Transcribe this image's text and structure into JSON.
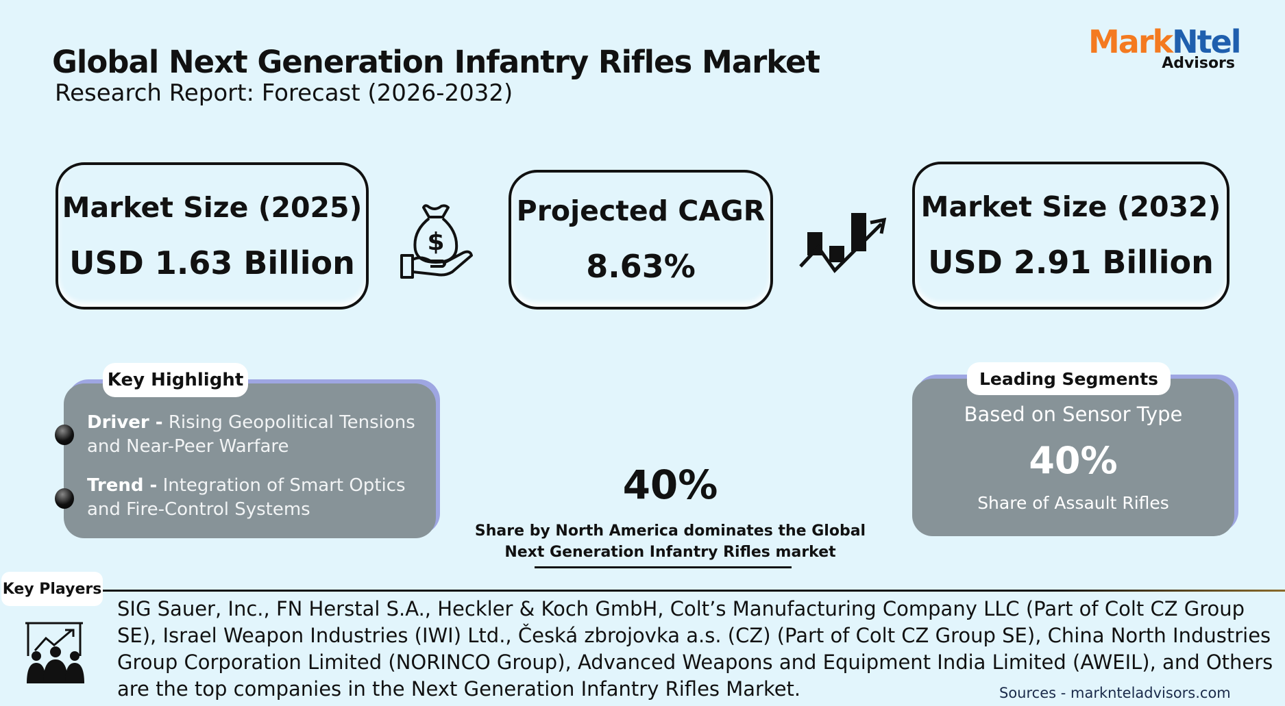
{
  "header": {
    "title": "Global Next Generation Infantry Rifles Market",
    "subtitle": "Research Report: Forecast (2026-2032)"
  },
  "logo": {
    "part1": "Mark",
    "part2": "Ntel",
    "part3": "Advisors",
    "colors": {
      "mark": "#f47a20",
      "ntel": "#1f5fae"
    }
  },
  "stats": [
    {
      "label": "Market Size (2025)",
      "value": "USD 1.63 Billion",
      "icon": "money-bag-hand-icon"
    },
    {
      "label": "Projected CAGR",
      "value": "8.63%",
      "icon": "growth-chart-arrow-icon"
    },
    {
      "label": "Market Size (2032)",
      "value": "USD 2.91 Billion"
    }
  ],
  "key_highlight": {
    "title": "Key Highlight",
    "items": [
      {
        "label": "Driver -",
        "text": "Rising Geopolitical Tensions and Near-Peer Warfare"
      },
      {
        "label": "Trend -",
        "text": "Integration of Smart Optics and Fire-Control Systems"
      }
    ]
  },
  "region": {
    "value": "40%",
    "line1": "Share by North America dominates the Global",
    "line2": "Next Generation Infantry Rifles market"
  },
  "segments": {
    "title": "Leading Segments",
    "basis": "Based on Sensor Type",
    "value": "40%",
    "caption": "Share of Assault Rifles"
  },
  "key_players": {
    "title": "Key Players",
    "text": "SIG Sauer, Inc., FN Herstal S.A., Heckler & Koch GmbH, Colt’s Manufacturing Company LLC (Part of Colt CZ Group SE), Israel Weapon Industries (IWI) Ltd., Česká zbrojovka a.s. (CZ) (Part of Colt CZ Group SE), China North Industries Group Corporation Limited (NORINCO Group), Advanced Weapons and Equipment India Limited (AWEIL), and Others are the top companies in the Next Generation Infantry Rifles Market.",
    "icon": "business-team-presentation-icon"
  },
  "sources": "Sources - marknteladvisors.com"
}
